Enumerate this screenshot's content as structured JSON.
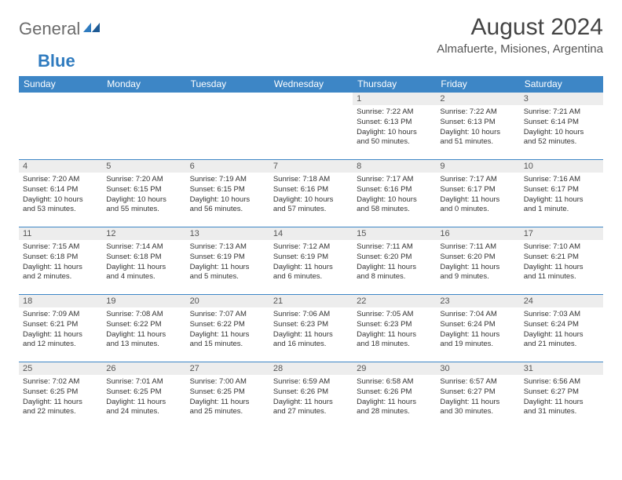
{
  "logo": {
    "general": "General",
    "blue": "Blue"
  },
  "title": "August 2024",
  "location": "Almafuerte, Misiones, Argentina",
  "colors": {
    "header_bg": "#3d86c6",
    "header_text": "#ffffff",
    "daynum_bg": "#ededed",
    "row_border": "#3d86c6",
    "logo_gray": "#6b6b6b",
    "logo_blue": "#2f7bbf"
  },
  "weekdays": [
    "Sunday",
    "Monday",
    "Tuesday",
    "Wednesday",
    "Thursday",
    "Friday",
    "Saturday"
  ],
  "weeks": [
    [
      null,
      null,
      null,
      null,
      {
        "n": "1",
        "sr": "Sunrise: 7:22 AM",
        "ss": "Sunset: 6:13 PM",
        "dl1": "Daylight: 10 hours",
        "dl2": "and 50 minutes."
      },
      {
        "n": "2",
        "sr": "Sunrise: 7:22 AM",
        "ss": "Sunset: 6:13 PM",
        "dl1": "Daylight: 10 hours",
        "dl2": "and 51 minutes."
      },
      {
        "n": "3",
        "sr": "Sunrise: 7:21 AM",
        "ss": "Sunset: 6:14 PM",
        "dl1": "Daylight: 10 hours",
        "dl2": "and 52 minutes."
      }
    ],
    [
      {
        "n": "4",
        "sr": "Sunrise: 7:20 AM",
        "ss": "Sunset: 6:14 PM",
        "dl1": "Daylight: 10 hours",
        "dl2": "and 53 minutes."
      },
      {
        "n": "5",
        "sr": "Sunrise: 7:20 AM",
        "ss": "Sunset: 6:15 PM",
        "dl1": "Daylight: 10 hours",
        "dl2": "and 55 minutes."
      },
      {
        "n": "6",
        "sr": "Sunrise: 7:19 AM",
        "ss": "Sunset: 6:15 PM",
        "dl1": "Daylight: 10 hours",
        "dl2": "and 56 minutes."
      },
      {
        "n": "7",
        "sr": "Sunrise: 7:18 AM",
        "ss": "Sunset: 6:16 PM",
        "dl1": "Daylight: 10 hours",
        "dl2": "and 57 minutes."
      },
      {
        "n": "8",
        "sr": "Sunrise: 7:17 AM",
        "ss": "Sunset: 6:16 PM",
        "dl1": "Daylight: 10 hours",
        "dl2": "and 58 minutes."
      },
      {
        "n": "9",
        "sr": "Sunrise: 7:17 AM",
        "ss": "Sunset: 6:17 PM",
        "dl1": "Daylight: 11 hours",
        "dl2": "and 0 minutes."
      },
      {
        "n": "10",
        "sr": "Sunrise: 7:16 AM",
        "ss": "Sunset: 6:17 PM",
        "dl1": "Daylight: 11 hours",
        "dl2": "and 1 minute."
      }
    ],
    [
      {
        "n": "11",
        "sr": "Sunrise: 7:15 AM",
        "ss": "Sunset: 6:18 PM",
        "dl1": "Daylight: 11 hours",
        "dl2": "and 2 minutes."
      },
      {
        "n": "12",
        "sr": "Sunrise: 7:14 AM",
        "ss": "Sunset: 6:18 PM",
        "dl1": "Daylight: 11 hours",
        "dl2": "and 4 minutes."
      },
      {
        "n": "13",
        "sr": "Sunrise: 7:13 AM",
        "ss": "Sunset: 6:19 PM",
        "dl1": "Daylight: 11 hours",
        "dl2": "and 5 minutes."
      },
      {
        "n": "14",
        "sr": "Sunrise: 7:12 AM",
        "ss": "Sunset: 6:19 PM",
        "dl1": "Daylight: 11 hours",
        "dl2": "and 6 minutes."
      },
      {
        "n": "15",
        "sr": "Sunrise: 7:11 AM",
        "ss": "Sunset: 6:20 PM",
        "dl1": "Daylight: 11 hours",
        "dl2": "and 8 minutes."
      },
      {
        "n": "16",
        "sr": "Sunrise: 7:11 AM",
        "ss": "Sunset: 6:20 PM",
        "dl1": "Daylight: 11 hours",
        "dl2": "and 9 minutes."
      },
      {
        "n": "17",
        "sr": "Sunrise: 7:10 AM",
        "ss": "Sunset: 6:21 PM",
        "dl1": "Daylight: 11 hours",
        "dl2": "and 11 minutes."
      }
    ],
    [
      {
        "n": "18",
        "sr": "Sunrise: 7:09 AM",
        "ss": "Sunset: 6:21 PM",
        "dl1": "Daylight: 11 hours",
        "dl2": "and 12 minutes."
      },
      {
        "n": "19",
        "sr": "Sunrise: 7:08 AM",
        "ss": "Sunset: 6:22 PM",
        "dl1": "Daylight: 11 hours",
        "dl2": "and 13 minutes."
      },
      {
        "n": "20",
        "sr": "Sunrise: 7:07 AM",
        "ss": "Sunset: 6:22 PM",
        "dl1": "Daylight: 11 hours",
        "dl2": "and 15 minutes."
      },
      {
        "n": "21",
        "sr": "Sunrise: 7:06 AM",
        "ss": "Sunset: 6:23 PM",
        "dl1": "Daylight: 11 hours",
        "dl2": "and 16 minutes."
      },
      {
        "n": "22",
        "sr": "Sunrise: 7:05 AM",
        "ss": "Sunset: 6:23 PM",
        "dl1": "Daylight: 11 hours",
        "dl2": "and 18 minutes."
      },
      {
        "n": "23",
        "sr": "Sunrise: 7:04 AM",
        "ss": "Sunset: 6:24 PM",
        "dl1": "Daylight: 11 hours",
        "dl2": "and 19 minutes."
      },
      {
        "n": "24",
        "sr": "Sunrise: 7:03 AM",
        "ss": "Sunset: 6:24 PM",
        "dl1": "Daylight: 11 hours",
        "dl2": "and 21 minutes."
      }
    ],
    [
      {
        "n": "25",
        "sr": "Sunrise: 7:02 AM",
        "ss": "Sunset: 6:25 PM",
        "dl1": "Daylight: 11 hours",
        "dl2": "and 22 minutes."
      },
      {
        "n": "26",
        "sr": "Sunrise: 7:01 AM",
        "ss": "Sunset: 6:25 PM",
        "dl1": "Daylight: 11 hours",
        "dl2": "and 24 minutes."
      },
      {
        "n": "27",
        "sr": "Sunrise: 7:00 AM",
        "ss": "Sunset: 6:25 PM",
        "dl1": "Daylight: 11 hours",
        "dl2": "and 25 minutes."
      },
      {
        "n": "28",
        "sr": "Sunrise: 6:59 AM",
        "ss": "Sunset: 6:26 PM",
        "dl1": "Daylight: 11 hours",
        "dl2": "and 27 minutes."
      },
      {
        "n": "29",
        "sr": "Sunrise: 6:58 AM",
        "ss": "Sunset: 6:26 PM",
        "dl1": "Daylight: 11 hours",
        "dl2": "and 28 minutes."
      },
      {
        "n": "30",
        "sr": "Sunrise: 6:57 AM",
        "ss": "Sunset: 6:27 PM",
        "dl1": "Daylight: 11 hours",
        "dl2": "and 30 minutes."
      },
      {
        "n": "31",
        "sr": "Sunrise: 6:56 AM",
        "ss": "Sunset: 6:27 PM",
        "dl1": "Daylight: 11 hours",
        "dl2": "and 31 minutes."
      }
    ]
  ]
}
